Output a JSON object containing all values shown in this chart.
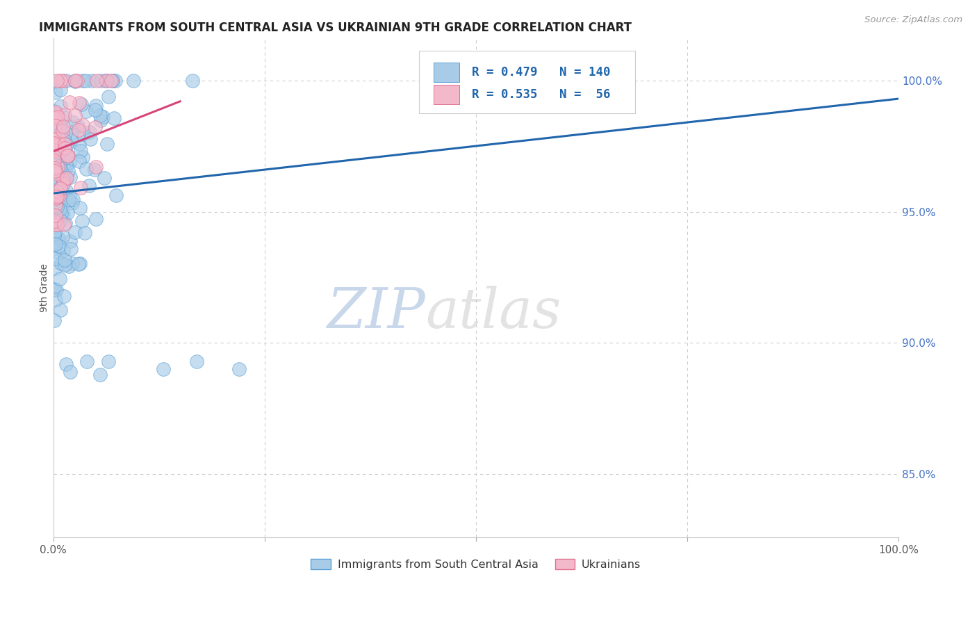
{
  "title": "IMMIGRANTS FROM SOUTH CENTRAL ASIA VS UKRAINIAN 9TH GRADE CORRELATION CHART",
  "source": "Source: ZipAtlas.com",
  "ylabel": "9th Grade",
  "blue_label": "Immigrants from South Central Asia",
  "pink_label": "Ukrainians",
  "blue_R": 0.479,
  "blue_N": 140,
  "pink_R": 0.535,
  "pink_N": 56,
  "blue_color": "#a8cce8",
  "pink_color": "#f4b8cb",
  "blue_edge_color": "#5a9fd4",
  "pink_edge_color": "#e07090",
  "blue_line_color": "#2166ac",
  "pink_line_color": "#d6457a",
  "legend_text_color": "#2166ac",
  "watermark_zip_color": "#c8d8ea",
  "watermark_atlas_color": "#c8c8c8",
  "right_tick_color": "#4472c4",
  "ylabel_right_ticks": [
    "100.0%",
    "95.0%",
    "90.0%",
    "85.0%"
  ],
  "ylabel_right_vals": [
    1.0,
    0.95,
    0.9,
    0.85
  ],
  "xgrid_vals": [
    0.0,
    0.25,
    0.5,
    0.75,
    1.0
  ],
  "xmin": 0.0,
  "xmax": 1.0,
  "ymin": 0.826,
  "ymax": 1.016
}
